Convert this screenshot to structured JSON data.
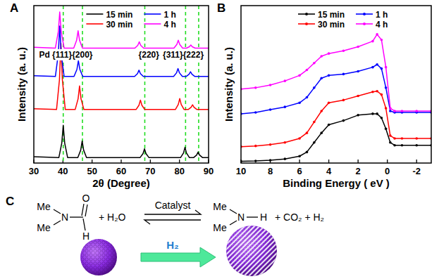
{
  "chart_data": [
    {
      "panel": "A",
      "type": "line",
      "x_label": "2θ (Degree)",
      "y_label": "Intensity (a. u.)",
      "xlim": [
        30,
        90
      ],
      "xticks": [
        30,
        40,
        50,
        60,
        70,
        80,
        90
      ],
      "ylim": [
        0,
        100
      ],
      "tick_labels": "x",
      "legend": "top",
      "reference_x": [
        40.1,
        46.7,
        68.1,
        82.1,
        86.6
      ],
      "annotations": [
        {
          "text": "Pd {111}{200}",
          "x": 41,
          "y": 67
        },
        {
          "text": "{220}",
          "x": 69.5,
          "y": 67
        },
        {
          "text": "{311}{222}",
          "x": 81.3,
          "y": 67
        }
      ],
      "series": [
        {
          "name": "15 min",
          "color": "#000000",
          "x": [
            30,
            38.6,
            39.6,
            40.1,
            40.6,
            41.6,
            45.1,
            46.1,
            46.6,
            47.1,
            48.1,
            66.5,
            67.5,
            68.0,
            68.5,
            69.5,
            80.4,
            81.4,
            81.9,
            82.4,
            83.4,
            84.9,
            85.9,
            86.4,
            86.9,
            87.9,
            90
          ],
          "values": [
            4,
            3.5,
            12.7,
            24,
            12.7,
            3.5,
            3.5,
            8.2,
            14,
            8.2,
            3.5,
            3.5,
            6,
            9,
            6,
            3.5,
            3.5,
            6.4,
            10,
            6.4,
            3.5,
            3.5,
            5.1,
            7,
            5.1,
            3.5,
            3.5
          ]
        },
        {
          "name": "30 min",
          "color": "#ff0000",
          "x": [
            30,
            37.8,
            38.8,
            39.3,
            39.8,
            40.8,
            44.2,
            45.2,
            45.7,
            46.2,
            47.2,
            65.1,
            66.1,
            66.6,
            67.1,
            68.1,
            78.6,
            79.6,
            80.1,
            80.6,
            81.6,
            83.0,
            84.0,
            84.5,
            85.0,
            86.0,
            90
          ],
          "values": [
            34.5,
            34,
            52.9,
            76,
            52.9,
            34,
            34,
            40.8,
            49,
            40.8,
            34,
            34,
            36.7,
            40,
            36.7,
            34,
            34,
            37.2,
            41,
            37.2,
            34,
            34,
            35.4,
            37,
            35.4,
            34,
            34
          ]
        },
        {
          "name": "1 h",
          "color": "#0000ff",
          "x": [
            30,
            37.4,
            38.4,
            38.9,
            39.4,
            40.4,
            43.8,
            44.8,
            45.3,
            45.8,
            46.8,
            64.6,
            65.6,
            66.1,
            66.6,
            67.6,
            78.0,
            79.0,
            79.5,
            80.0,
            81.0,
            82.3,
            83.3,
            83.8,
            84.3,
            85.3,
            90
          ],
          "values": [
            55.5,
            55,
            69.4,
            87,
            69.4,
            55,
            55,
            59.5,
            65,
            59.5,
            55,
            55,
            56.8,
            59,
            56.8,
            55,
            55,
            57.3,
            60,
            57.3,
            55,
            55,
            56.4,
            58,
            56.4,
            55,
            55
          ]
        },
        {
          "name": "4 h",
          "color": "#ff00ff",
          "x": [
            30,
            37.4,
            38.4,
            38.9,
            39.4,
            40.4,
            43.7,
            44.7,
            45.2,
            45.7,
            46.7,
            64.7,
            65.7,
            66.2,
            66.7,
            67.7,
            78.1,
            79.1,
            79.6,
            80.1,
            81.1,
            82.4,
            83.4,
            83.9,
            84.4,
            85.4,
            90
          ],
          "values": [
            73.5,
            73,
            83.4,
            96,
            83.4,
            73,
            73,
            78,
            84,
            78,
            73,
            73,
            74.8,
            77,
            74.8,
            73,
            73,
            75.3,
            78,
            75.3,
            73,
            73,
            73.9,
            75,
            73.9,
            73,
            73
          ]
        }
      ]
    },
    {
      "panel": "B",
      "type": "line",
      "x_label": "Binding Energy ( eV )",
      "y_label": "Intensity (a. u.)",
      "xlim": [
        10,
        -3
      ],
      "xticks": [
        10,
        8,
        6,
        4,
        2,
        0,
        -2
      ],
      "ylim": [
        0,
        115
      ],
      "tick_labels": "x",
      "legend": "top",
      "marker": "circle",
      "x": [
        10,
        9,
        8,
        7,
        6,
        5.5,
        5,
        4.5,
        4,
        3,
        2,
        1,
        0.7,
        0.4,
        0.1,
        -0.2,
        -0.5,
        -1,
        -2,
        -3
      ],
      "series": [
        {
          "name": "15 min",
          "color": "#000000",
          "values": [
            1.3,
            1.5,
            2,
            3,
            5,
            8,
            15,
            22,
            28,
            31,
            35,
            36,
            36,
            33,
            25,
            15,
            13,
            13,
            13,
            13
          ]
        },
        {
          "name": "30 min",
          "color": "#ff0000",
          "values": [
            12,
            12.5,
            13.5,
            15,
            18,
            22,
            30,
            38,
            44,
            46,
            49,
            52,
            52.5,
            50,
            40,
            20,
            18,
            18,
            18,
            18
          ]
        },
        {
          "name": "1 h",
          "color": "#0000ff",
          "values": [
            36,
            37,
            39,
            41,
            44,
            48,
            55,
            62,
            64,
            65,
            67,
            70,
            72,
            69,
            55,
            38,
            37,
            37,
            37,
            37
          ]
        },
        {
          "name": "4 h",
          "color": "#ff00ff",
          "values": [
            54,
            55,
            57,
            60,
            64,
            68,
            73,
            78,
            80,
            82,
            85,
            89,
            94,
            90,
            70,
            40,
            38,
            38,
            38,
            38
          ]
        }
      ]
    }
  ],
  "scheme": {
    "panel": "C",
    "reactant": {
      "me_top": "Me",
      "me_bottom": "Me",
      "n": "N",
      "o": "O",
      "h": "H"
    },
    "water": "+ H₂O",
    "catalyst": "Catalyst",
    "product": {
      "me_top": "Me",
      "me_bottom": "Me",
      "n": "N",
      "h": "H"
    },
    "byproducts": "+ CO₂ + H₂",
    "gas": "H₂"
  }
}
